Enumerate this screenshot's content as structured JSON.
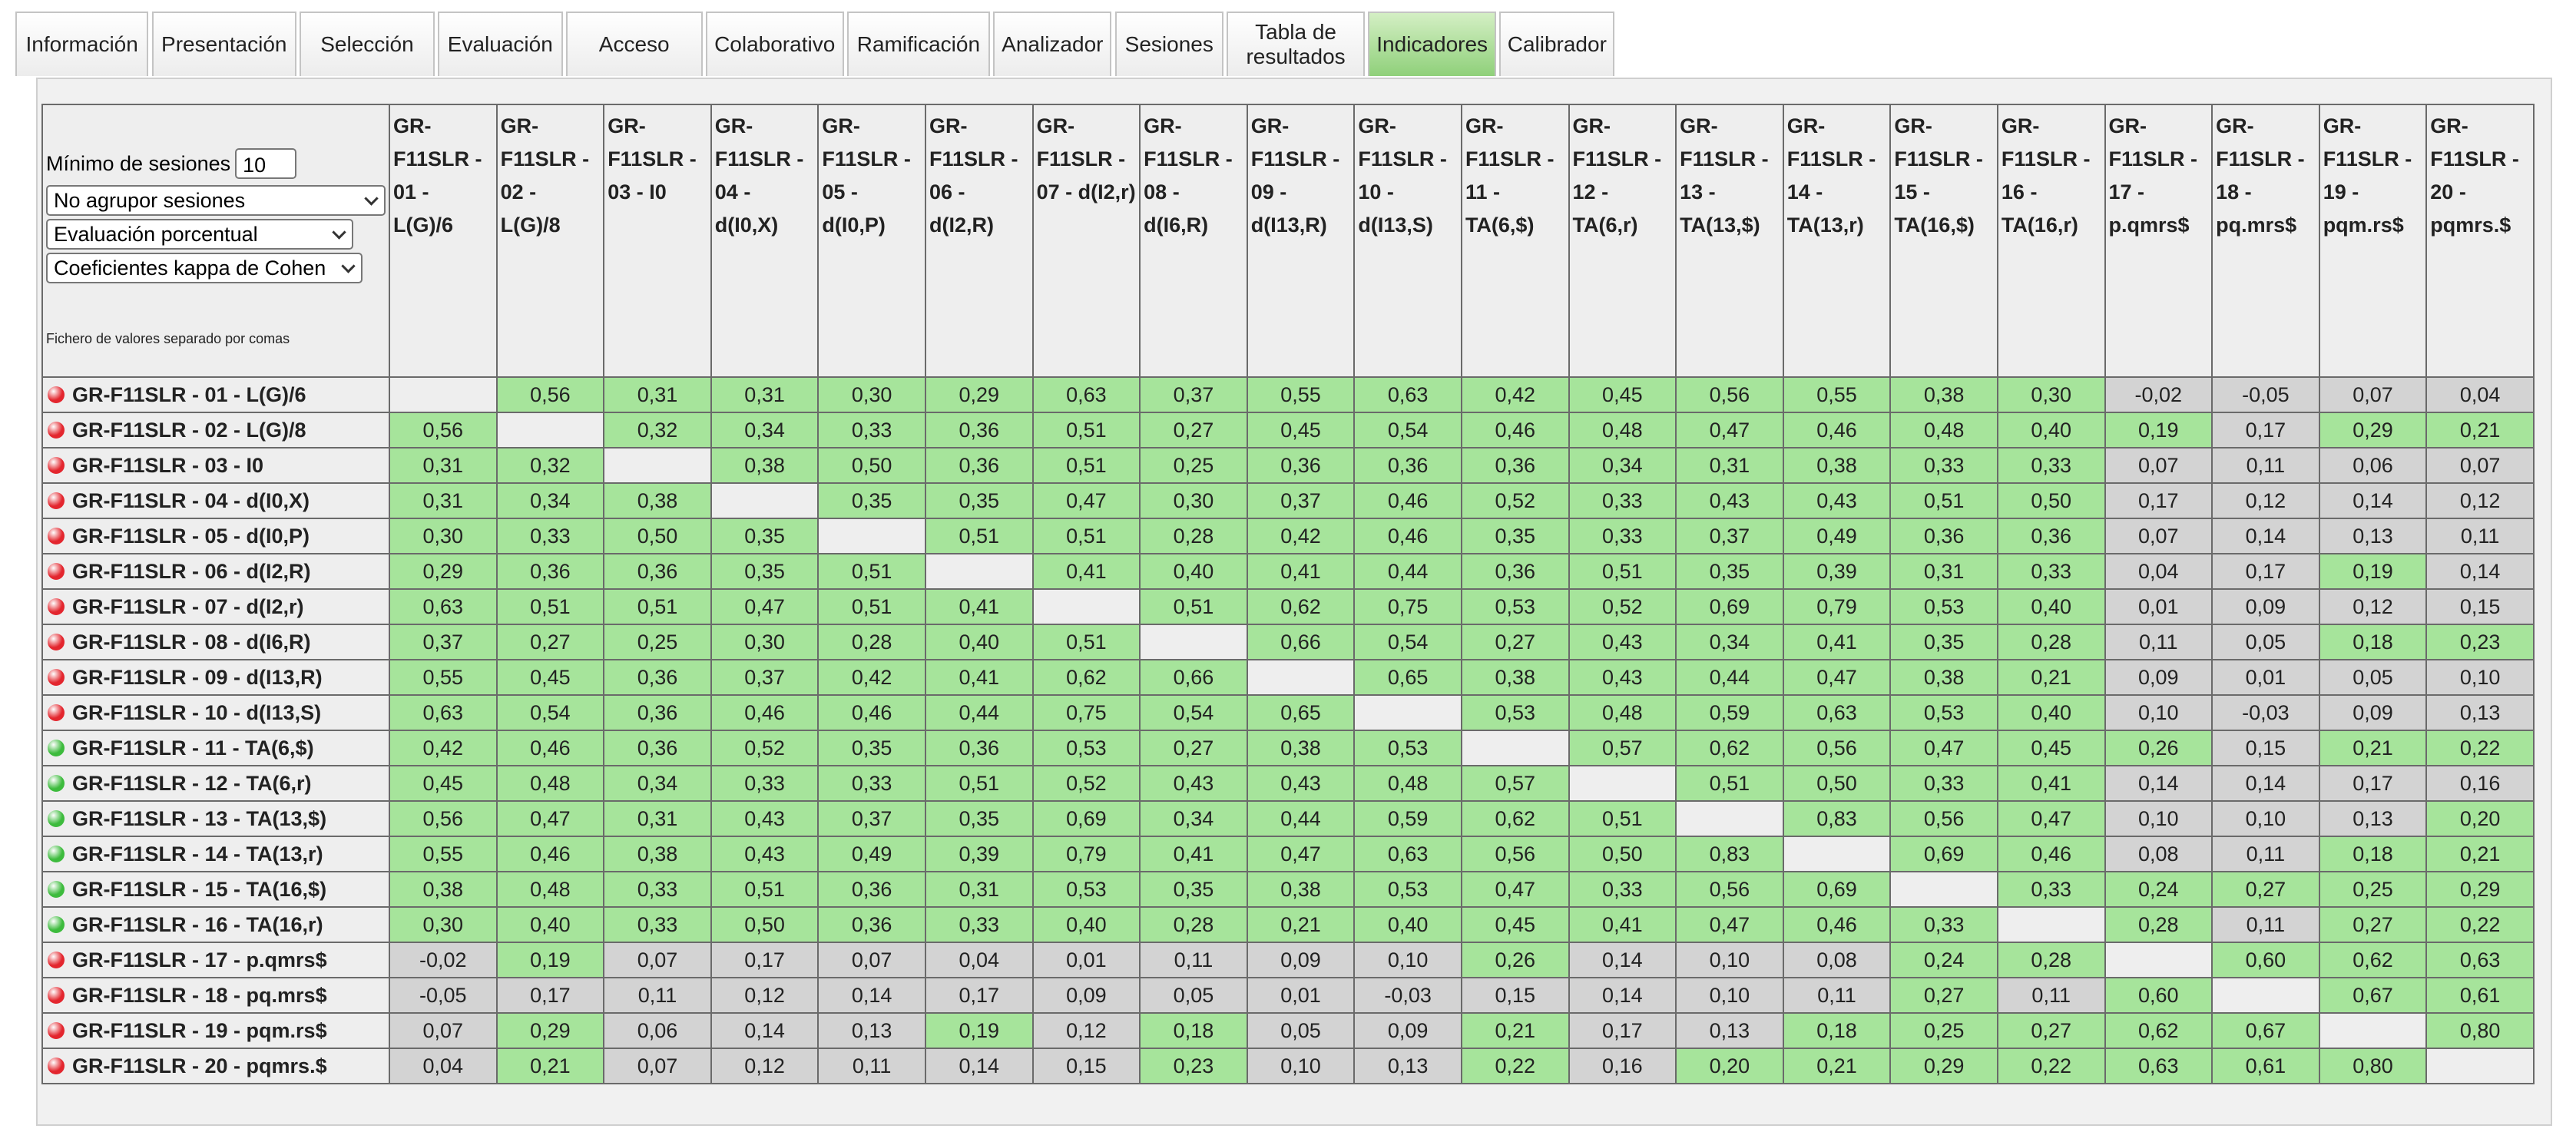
{
  "tabs": [
    "Información",
    "Presentación",
    "Selección",
    "Evaluación",
    "Acceso",
    "Colaborativo",
    "Ramificación",
    "Analizador",
    "Sesiones",
    "Tabla de resultados",
    "Indicadores",
    "Calibrador"
  ],
  "active_tab": 10,
  "controls": {
    "min_sessions_label": "Mínimo de sesiones",
    "min_sessions_value": "10",
    "grouping": "No agrupor sesiones",
    "evaluation": "Evaluación porcentual",
    "coefficient": "Coeficientes kappa de Cohen",
    "csv_link": "Fichero de valores separado por comas"
  },
  "colors": {
    "high": "#a6e49b",
    "low": "#d3d3d3",
    "empty": "#eeeeee",
    "high_from": 0.18
  },
  "columns": [
    "GR-F11SLR - 01 - L(G)/6",
    "GR-F11SLR - 02 - L(G)/8",
    "GR-F11SLR - 03 - I0",
    "GR-F11SLR - 04 - d(I0,X)",
    "GR-F11SLR - 05 - d(I0,P)",
    "GR-F11SLR - 06 - d(I2,R)",
    "GR-F11SLR - 07 - d(I2,r)",
    "GR-F11SLR - 08 - d(I6,R)",
    "GR-F11SLR - 09 - d(I13,R)",
    "GR-F11SLR - 10 - d(I13,S)",
    "GR-F11SLR - 11 - TA(6,$)",
    "GR-F11SLR - 12 - TA(6,r)",
    "GR-F11SLR - 13 - TA(13,$)",
    "GR-F11SLR - 14 - TA(13,r)",
    "GR-F11SLR - 15 - TA(16,$)",
    "GR-F11SLR - 16 - TA(16,r)",
    "GR-F11SLR - 17 - p.qmrs$",
    "GR-F11SLR - 18 - pq.mrs$",
    "GR-F11SLR - 19 - pqm.rs$",
    "GR-F11SLR - 20 - pqmrs.$"
  ],
  "rows": [
    {
      "label": "GR-F11SLR - 01 - L(G)/6",
      "dot": "#e3262e",
      "cells": [
        null,
        "0,56",
        "0,31",
        "0,31",
        "0,30",
        "0,29",
        "0,63",
        "0,37",
        "0,55",
        "0,63",
        "0,42",
        "0,45",
        "0,56",
        "0,55",
        "0,38",
        "0,30",
        "-0,02",
        "-0,05",
        "0,07",
        "0,04"
      ]
    },
    {
      "label": "GR-F11SLR - 02 - L(G)/8",
      "dot": "#e3262e",
      "cells": [
        "0,56",
        null,
        "0,32",
        "0,34",
        "0,33",
        "0,36",
        "0,51",
        "0,27",
        "0,45",
        "0,54",
        "0,46",
        "0,48",
        "0,47",
        "0,46",
        "0,48",
        "0,40",
        "0,19",
        "0,17",
        "0,29",
        "0,21"
      ]
    },
    {
      "label": "GR-F11SLR - 03 - I0",
      "dot": "#e3262e",
      "cells": [
        "0,31",
        "0,32",
        null,
        "0,38",
        "0,50",
        "0,36",
        "0,51",
        "0,25",
        "0,36",
        "0,36",
        "0,36",
        "0,34",
        "0,31",
        "0,38",
        "0,33",
        "0,33",
        "0,07",
        "0,11",
        "0,06",
        "0,07"
      ]
    },
    {
      "label": "GR-F11SLR - 04 - d(I0,X)",
      "dot": "#e3262e",
      "cells": [
        "0,31",
        "0,34",
        "0,38",
        null,
        "0,35",
        "0,35",
        "0,47",
        "0,30",
        "0,37",
        "0,46",
        "0,52",
        "0,33",
        "0,43",
        "0,43",
        "0,51",
        "0,50",
        "0,17",
        "0,12",
        "0,14",
        "0,12"
      ]
    },
    {
      "label": "GR-F11SLR - 05 - d(I0,P)",
      "dot": "#e3262e",
      "cells": [
        "0,30",
        "0,33",
        "0,50",
        "0,35",
        null,
        "0,51",
        "0,51",
        "0,28",
        "0,42",
        "0,46",
        "0,35",
        "0,33",
        "0,37",
        "0,49",
        "0,36",
        "0,36",
        "0,07",
        "0,14",
        "0,13",
        "0,11"
      ]
    },
    {
      "label": "GR-F11SLR - 06 - d(I2,R)",
      "dot": "#e3262e",
      "cells": [
        "0,29",
        "0,36",
        "0,36",
        "0,35",
        "0,51",
        null,
        "0,41",
        "0,40",
        "0,41",
        "0,44",
        "0,36",
        "0,51",
        "0,35",
        "0,39",
        "0,31",
        "0,33",
        "0,04",
        "0,17",
        "0,19",
        "0,14"
      ]
    },
    {
      "label": "GR-F11SLR - 07 - d(I2,r)",
      "dot": "#e3262e",
      "cells": [
        "0,63",
        "0,51",
        "0,51",
        "0,47",
        "0,51",
        "0,41",
        null,
        "0,51",
        "0,62",
        "0,75",
        "0,53",
        "0,52",
        "0,69",
        "0,79",
        "0,53",
        "0,40",
        "0,01",
        "0,09",
        "0,12",
        "0,15"
      ]
    },
    {
      "label": "GR-F11SLR - 08 - d(I6,R)",
      "dot": "#e3262e",
      "cells": [
        "0,37",
        "0,27",
        "0,25",
        "0,30",
        "0,28",
        "0,40",
        "0,51",
        null,
        "0,66",
        "0,54",
        "0,27",
        "0,43",
        "0,34",
        "0,41",
        "0,35",
        "0,28",
        "0,11",
        "0,05",
        "0,18",
        "0,23"
      ]
    },
    {
      "label": "GR-F11SLR - 09 - d(I13,R)",
      "dot": "#e3262e",
      "cells": [
        "0,55",
        "0,45",
        "0,36",
        "0,37",
        "0,42",
        "0,41",
        "0,62",
        "0,66",
        null,
        "0,65",
        "0,38",
        "0,43",
        "0,44",
        "0,47",
        "0,38",
        "0,21",
        "0,09",
        "0,01",
        "0,05",
        "0,10"
      ]
    },
    {
      "label": "GR-F11SLR - 10 - d(I13,S)",
      "dot": "#e3262e",
      "cells": [
        "0,63",
        "0,54",
        "0,36",
        "0,46",
        "0,46",
        "0,44",
        "0,75",
        "0,54",
        "0,65",
        null,
        "0,53",
        "0,48",
        "0,59",
        "0,63",
        "0,53",
        "0,40",
        "0,10",
        "-0,03",
        "0,09",
        "0,13"
      ]
    },
    {
      "label": "GR-F11SLR - 11 - TA(6,$)",
      "dot": "#3dbb3d",
      "cells": [
        "0,42",
        "0,46",
        "0,36",
        "0,52",
        "0,35",
        "0,36",
        "0,53",
        "0,27",
        "0,38",
        "0,53",
        null,
        "0,57",
        "0,62",
        "0,56",
        "0,47",
        "0,45",
        "0,26",
        "0,15",
        "0,21",
        "0,22"
      ]
    },
    {
      "label": "GR-F11SLR - 12 - TA(6,r)",
      "dot": "#3dbb3d",
      "cells": [
        "0,45",
        "0,48",
        "0,34",
        "0,33",
        "0,33",
        "0,51",
        "0,52",
        "0,43",
        "0,43",
        "0,48",
        "0,57",
        null,
        "0,51",
        "0,50",
        "0,33",
        "0,41",
        "0,14",
        "0,14",
        "0,17",
        "0,16"
      ]
    },
    {
      "label": "GR-F11SLR - 13 - TA(13,$)",
      "dot": "#3dbb3d",
      "cells": [
        "0,56",
        "0,47",
        "0,31",
        "0,43",
        "0,37",
        "0,35",
        "0,69",
        "0,34",
        "0,44",
        "0,59",
        "0,62",
        "0,51",
        null,
        "0,83",
        "0,56",
        "0,47",
        "0,10",
        "0,10",
        "0,13",
        "0,20"
      ]
    },
    {
      "label": "GR-F11SLR - 14 - TA(13,r)",
      "dot": "#3dbb3d",
      "cells": [
        "0,55",
        "0,46",
        "0,38",
        "0,43",
        "0,49",
        "0,39",
        "0,79",
        "0,41",
        "0,47",
        "0,63",
        "0,56",
        "0,50",
        "0,83",
        null,
        "0,69",
        "0,46",
        "0,08",
        "0,11",
        "0,18",
        "0,21"
      ]
    },
    {
      "label": "GR-F11SLR - 15 - TA(16,$)",
      "dot": "#3dbb3d",
      "cells": [
        "0,38",
        "0,48",
        "0,33",
        "0,51",
        "0,36",
        "0,31",
        "0,53",
        "0,35",
        "0,38",
        "0,53",
        "0,47",
        "0,33",
        "0,56",
        "0,69",
        null,
        "0,33",
        "0,24",
        "0,27",
        "0,25",
        "0,29"
      ]
    },
    {
      "label": "GR-F11SLR - 16 - TA(16,r)",
      "dot": "#3dbb3d",
      "cells": [
        "0,30",
        "0,40",
        "0,33",
        "0,50",
        "0,36",
        "0,33",
        "0,40",
        "0,28",
        "0,21",
        "0,40",
        "0,45",
        "0,41",
        "0,47",
        "0,46",
        "0,33",
        null,
        "0,28",
        "0,11",
        "0,27",
        "0,22"
      ]
    },
    {
      "label": "GR-F11SLR - 17 - p.qmrs$",
      "dot": "#e3262e",
      "cells": [
        "-0,02",
        "0,19",
        "0,07",
        "0,17",
        "0,07",
        "0,04",
        "0,01",
        "0,11",
        "0,09",
        "0,10",
        "0,26",
        "0,14",
        "0,10",
        "0,08",
        "0,24",
        "0,28",
        null,
        "0,60",
        "0,62",
        "0,63"
      ]
    },
    {
      "label": "GR-F11SLR - 18 - pq.mrs$",
      "dot": "#e3262e",
      "cells": [
        "-0,05",
        "0,17",
        "0,11",
        "0,12",
        "0,14",
        "0,17",
        "0,09",
        "0,05",
        "0,01",
        "-0,03",
        "0,15",
        "0,14",
        "0,10",
        "0,11",
        "0,27",
        "0,11",
        "0,60",
        null,
        "0,67",
        "0,61"
      ]
    },
    {
      "label": "GR-F11SLR - 19 - pqm.rs$",
      "dot": "#e3262e",
      "cells": [
        "0,07",
        "0,29",
        "0,06",
        "0,14",
        "0,13",
        "0,19",
        "0,12",
        "0,18",
        "0,05",
        "0,09",
        "0,21",
        "0,17",
        "0,13",
        "0,18",
        "0,25",
        "0,27",
        "0,62",
        "0,67",
        null,
        "0,80"
      ]
    },
    {
      "label": "GR-F11SLR - 20 - pqmrs.$",
      "dot": "#e3262e",
      "cells": [
        "0,04",
        "0,21",
        "0,07",
        "0,12",
        "0,11",
        "0,14",
        "0,15",
        "0,23",
        "0,10",
        "0,13",
        "0,22",
        "0,16",
        "0,20",
        "0,21",
        "0,29",
        "0,22",
        "0,63",
        "0,61",
        "0,80",
        null
      ]
    }
  ]
}
